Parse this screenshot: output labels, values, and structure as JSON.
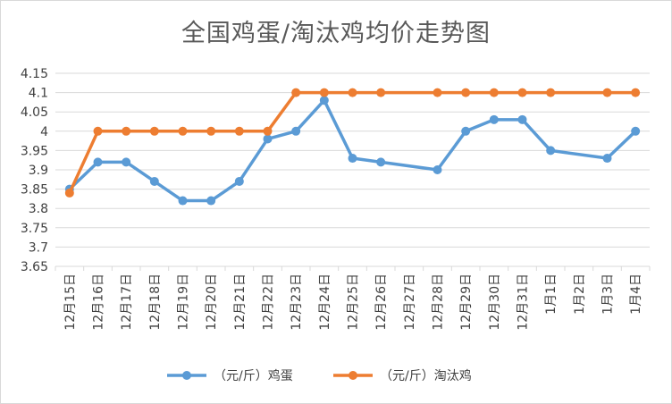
{
  "chart_data": {
    "type": "line",
    "title": "全国鸡蛋/淘汰鸡均价走势图",
    "categories": [
      "12月15日",
      "12月16日",
      "12月17日",
      "12月18日",
      "12月19日",
      "12月20日",
      "12月21日",
      "12月22日",
      "12月23日",
      "12月24日",
      "12月25日",
      "12月26日",
      "12月27日",
      "12月28日",
      "12月29日",
      "12月30日",
      "12月31日",
      "1月1日",
      "1月2日",
      "1月3日",
      "1月4日"
    ],
    "y_ticks": [
      "3.65",
      "3.7",
      "3.75",
      "3.8",
      "3.85",
      "3.9",
      "3.95",
      "4",
      "4.05",
      "4.1",
      "4.15"
    ],
    "ylim": [
      3.65,
      4.15
    ],
    "grid": true,
    "legend_position": "bottom",
    "series": [
      {
        "name": "（元/斤）鸡蛋",
        "color": "#5b9bd5",
        "values": [
          3.85,
          3.92,
          3.92,
          3.87,
          3.82,
          3.82,
          3.87,
          3.98,
          4.0,
          4.08,
          3.93,
          3.92,
          null,
          3.9,
          4.0,
          4.03,
          4.03,
          3.95,
          null,
          3.93,
          4.0
        ]
      },
      {
        "name": "（元/斤）淘汰鸡",
        "color": "#ed7d31",
        "values": [
          3.84,
          4.0,
          4.0,
          4.0,
          4.0,
          4.0,
          4.0,
          4.0,
          4.1,
          4.1,
          4.1,
          4.1,
          null,
          4.1,
          4.1,
          4.1,
          4.1,
          4.1,
          null,
          4.1,
          4.1
        ]
      }
    ]
  }
}
